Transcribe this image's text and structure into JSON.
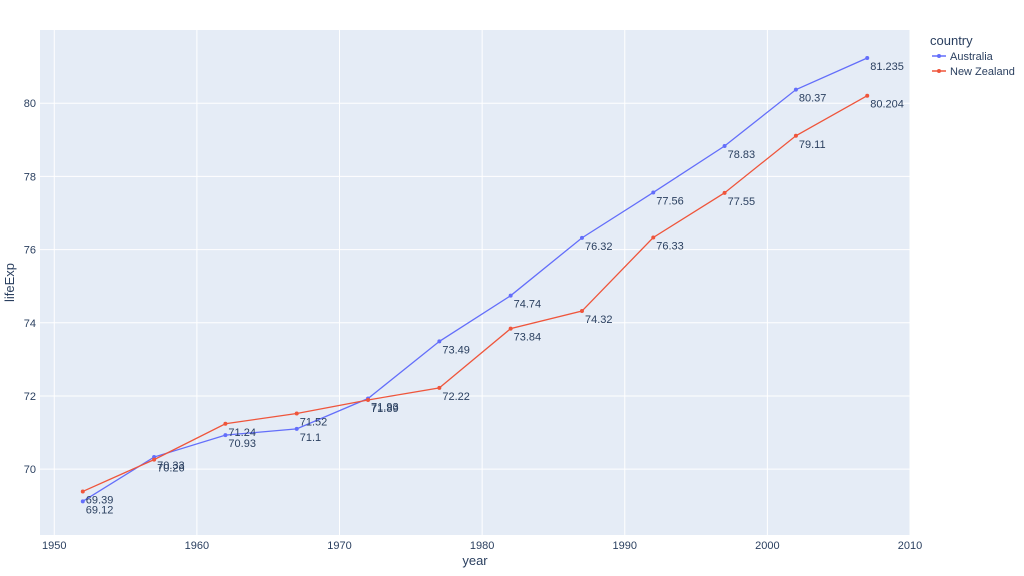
{
  "chart_data": {
    "type": "line",
    "title": "",
    "xlabel": "year",
    "ylabel": "lifeExp",
    "xlim": [
      1949,
      2010
    ],
    "ylim": [
      68.2,
      82.0
    ],
    "x_ticks": [
      "1950",
      "1960",
      "1970",
      "1980",
      "1990",
      "2000",
      "2010"
    ],
    "y_ticks": [
      "70",
      "72",
      "74",
      "76",
      "78",
      "80"
    ],
    "grid": true,
    "legend_title": "country",
    "legend_position": "top-right",
    "x": [
      1952,
      1957,
      1962,
      1967,
      1972,
      1977,
      1982,
      1987,
      1992,
      1997,
      2002,
      2007
    ],
    "series": [
      {
        "name": "Australia",
        "color": "#636efa",
        "values": [
          69.12,
          70.33,
          70.93,
          71.1,
          71.93,
          73.49,
          74.74,
          76.32,
          77.56,
          78.83,
          80.37,
          81.235
        ],
        "labels": [
          "69.12",
          "70.33",
          "70.93",
          "71.1",
          "71.93",
          "73.49",
          "74.74",
          "76.32",
          "77.56",
          "78.83",
          "80.37",
          "81.235"
        ]
      },
      {
        "name": "New Zealand",
        "color": "#ef553b",
        "values": [
          69.39,
          70.26,
          71.24,
          71.52,
          71.89,
          72.22,
          73.84,
          74.32,
          76.33,
          77.55,
          79.11,
          80.204
        ],
        "labels": [
          "69.39",
          "70.26",
          "71.24",
          "71.52",
          "71.89",
          "72.22",
          "73.84",
          "74.32",
          "76.33",
          "77.55",
          "79.11",
          "80.204"
        ]
      }
    ]
  },
  "colors": {
    "plot_bg": "#e5ecf6",
    "grid": "#ffffff",
    "text": "#2a3f5f"
  }
}
